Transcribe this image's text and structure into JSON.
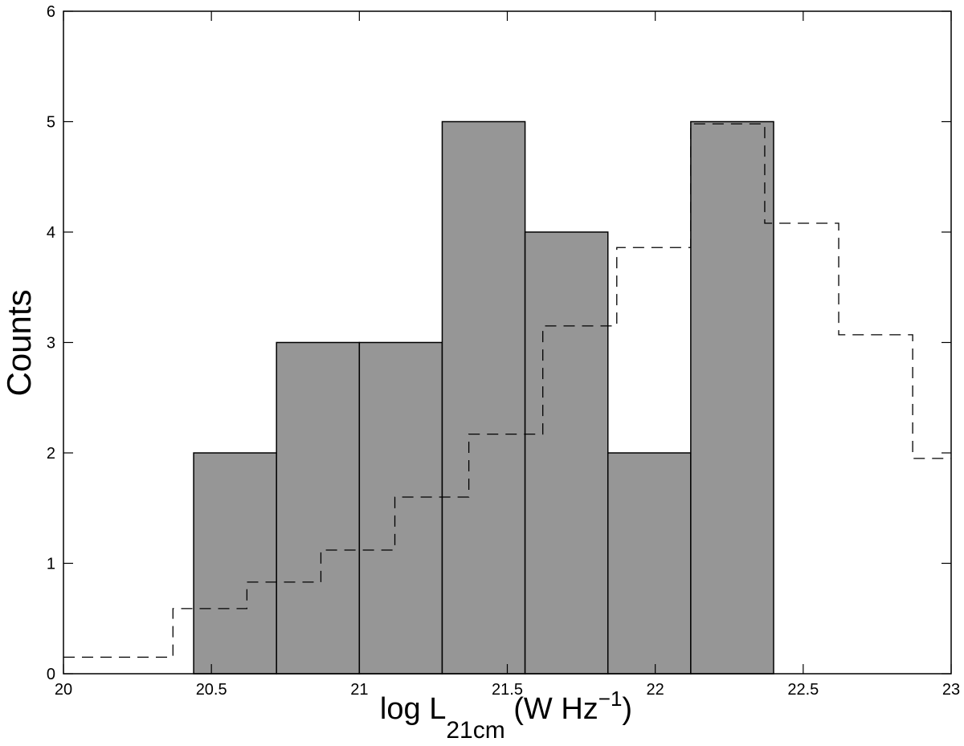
{
  "chart_data": {
    "type": "bar",
    "xlabel_parts": {
      "main": "log L",
      "sub": "21cm",
      "unit_open": " (W Hz",
      "sup": "−1",
      "unit_close": ")"
    },
    "ylabel": "Counts",
    "xlim": [
      20,
      23
    ],
    "ylim": [
      0,
      6
    ],
    "xticks": [
      "20",
      "20.5",
      "21",
      "21.5",
      "22",
      "22.5",
      "23"
    ],
    "yticks": [
      "0",
      "1",
      "2",
      "3",
      "4",
      "5",
      "6"
    ],
    "grid": false,
    "colors": {
      "bar_fill": "#969696",
      "bar_edge": "#000000",
      "dashed_line": "#000000"
    },
    "bars": [
      {
        "x0": 20.44,
        "x1": 20.72,
        "count": 2
      },
      {
        "x0": 20.72,
        "x1": 21.0,
        "count": 3
      },
      {
        "x0": 21.0,
        "x1": 21.28,
        "count": 3
      },
      {
        "x0": 21.28,
        "x1": 21.56,
        "count": 5
      },
      {
        "x0": 21.56,
        "x1": 21.84,
        "count": 4
      },
      {
        "x0": 21.84,
        "x1": 22.12,
        "count": 2
      },
      {
        "x0": 22.12,
        "x1": 22.4,
        "count": 5
      }
    ],
    "dashed_step": [
      {
        "x0": 20.0,
        "x1": 20.37,
        "y": 0.15
      },
      {
        "x0": 20.37,
        "x1": 20.62,
        "y": 0.59
      },
      {
        "x0": 20.62,
        "x1": 20.87,
        "y": 0.83
      },
      {
        "x0": 20.87,
        "x1": 21.12,
        "y": 1.12
      },
      {
        "x0": 21.12,
        "x1": 21.37,
        "y": 1.6
      },
      {
        "x0": 21.37,
        "x1": 21.62,
        "y": 2.17
      },
      {
        "x0": 21.62,
        "x1": 21.87,
        "y": 3.15
      },
      {
        "x0": 21.87,
        "x1": 22.12,
        "y": 3.86
      },
      {
        "x0": 22.12,
        "x1": 22.37,
        "y": 4.98
      },
      {
        "x0": 22.37,
        "x1": 22.62,
        "y": 4.08
      },
      {
        "x0": 22.62,
        "x1": 22.87,
        "y": 3.07
      },
      {
        "x0": 22.87,
        "x1": 23.0,
        "y": 1.95
      }
    ]
  }
}
